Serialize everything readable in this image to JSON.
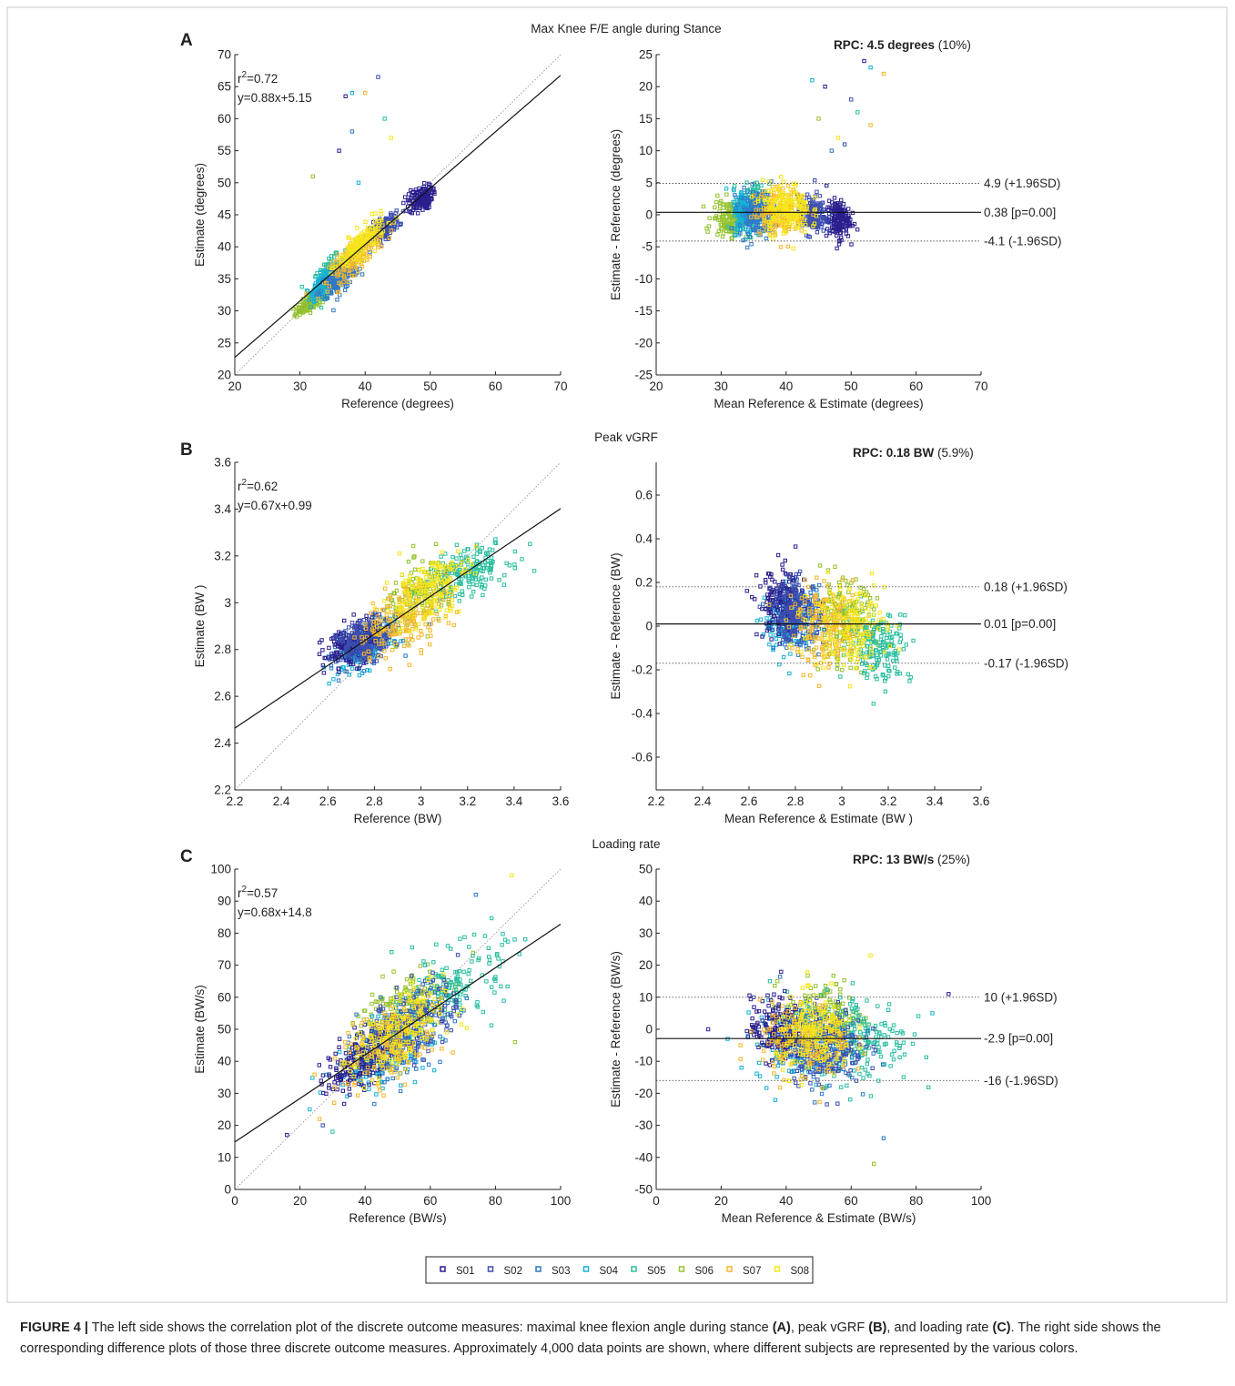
{
  "figure": {
    "caption": {
      "label": "FIGURE 4 |",
      "parts": [
        {
          "t": " The left side shows the correlation plot of the discrete outcome measures: maximal knee flexion angle during stance ",
          "b": false
        },
        {
          "t": "(A)",
          "b": true
        },
        {
          "t": ", peak vGRF ",
          "b": false
        },
        {
          "t": "(B)",
          "b": true
        },
        {
          "t": ", and loading rate ",
          "b": false
        },
        {
          "t": "(C)",
          "b": true
        },
        {
          "t": ". The right side shows the corresponding difference plots of those three discrete outcome measures. Approximately 4,000 data points are shown, where different subjects are represented by the various colors.",
          "b": false
        }
      ]
    },
    "legend": {
      "entries": [
        "S01",
        "S02",
        "S03",
        "S04",
        "S05",
        "S06",
        "S07",
        "S08"
      ],
      "colors": [
        "#2a1f8f",
        "#3d4fb0",
        "#2f78c8",
        "#16b1d6",
        "#2bbfa0",
        "#95c22e",
        "#f6b72b",
        "#f6e51a"
      ]
    }
  },
  "chart_data": [
    {
      "id": "A-left",
      "panel_letter": "A",
      "panel_title": "Max Knee F/E angle during Stance",
      "type": "scatter",
      "xlabel": "Reference (degrees)",
      "ylabel": "Estimate (degrees)",
      "xlim": [
        20,
        70
      ],
      "ylim": [
        20,
        70
      ],
      "xticks": [
        20,
        30,
        40,
        50,
        60,
        70
      ],
      "yticks": [
        20,
        25,
        30,
        35,
        40,
        45,
        50,
        55,
        60,
        65,
        70
      ],
      "annotation_r2": "r²=0.72",
      "annotation_eq": "y=0.88x+5.15",
      "fit_line": {
        "slope": 0.88,
        "intercept": 5.15
      },
      "identity_line": true,
      "series_clusters": [
        {
          "name": "S01",
          "cx": 48.5,
          "cy": 47.5,
          "sx": 0.9,
          "sy": 1.0,
          "rho": 0.3
        },
        {
          "name": "S02",
          "cx": 43.0,
          "cy": 43.0,
          "sx": 1.1,
          "sy": 1.0,
          "rho": 0.6
        },
        {
          "name": "S03",
          "cx": 36.0,
          "cy": 35.0,
          "sx": 1.5,
          "sy": 1.5,
          "rho": 0.7
        },
        {
          "name": "S04",
          "cx": 33.5,
          "cy": 34.0,
          "sx": 0.8,
          "sy": 1.0,
          "rho": 0.6
        },
        {
          "name": "S05",
          "cx": 34.5,
          "cy": 35.5,
          "sx": 1.2,
          "sy": 1.5,
          "rho": 0.6
        },
        {
          "name": "S06",
          "cx": 32.0,
          "cy": 31.5,
          "sx": 1.3,
          "sy": 1.0,
          "rho": 0.8
        },
        {
          "name": "S07",
          "cx": 38.5,
          "cy": 38.5,
          "sx": 2.0,
          "sy": 2.0,
          "rho": 0.8
        },
        {
          "name": "S08",
          "cx": 39.5,
          "cy": 40.5,
          "sx": 1.8,
          "sy": 1.9,
          "rho": 0.8
        }
      ],
      "outliers": [
        [
          37,
          63.5
        ],
        [
          38,
          64
        ],
        [
          40,
          64
        ],
        [
          42,
          66.5
        ],
        [
          43,
          60
        ],
        [
          44,
          57
        ],
        [
          38,
          58
        ],
        [
          32,
          51
        ],
        [
          36,
          55
        ],
        [
          39,
          50
        ]
      ]
    },
    {
      "id": "A-right",
      "type": "scatter",
      "xlabel": "Mean Reference & Estimate (degrees)",
      "ylabel": "Estimate - Reference (degrees)",
      "xlim": [
        20,
        70
      ],
      "ylim": [
        -25,
        25
      ],
      "xticks": [
        20,
        30,
        40,
        50,
        60,
        70
      ],
      "yticks": [
        -25,
        -20,
        -15,
        -10,
        -5,
        0,
        5,
        10,
        15,
        20,
        25
      ],
      "rpc_bold": "RPC: 4.5 degrees",
      "rpc_pct": "(10%)",
      "mean_line": {
        "value": 0.38,
        "label": "0.38 [p=0.00]"
      },
      "upper_loa": {
        "value": 4.9,
        "label": "4.9 (+1.96SD)"
      },
      "lower_loa": {
        "value": -4.1,
        "label": "-4.1 (-1.96SD)"
      },
      "series_clusters": [
        {
          "name": "S01",
          "cx": 48.0,
          "cy": -0.8,
          "sx": 0.9,
          "sy": 1.5,
          "rho": 0
        },
        {
          "name": "S02",
          "cx": 44.0,
          "cy": 0.0,
          "sx": 1.1,
          "sy": 1.5,
          "rho": 0
        },
        {
          "name": "S03",
          "cx": 35.5,
          "cy": 0.3,
          "sx": 1.4,
          "sy": 1.8,
          "rho": 0
        },
        {
          "name": "S04",
          "cx": 33.5,
          "cy": 0.5,
          "sx": 0.8,
          "sy": 1.7,
          "rho": 0
        },
        {
          "name": "S05",
          "cx": 35.0,
          "cy": 1.0,
          "sx": 1.2,
          "sy": 1.9,
          "rho": 0
        },
        {
          "name": "S06",
          "cx": 31.5,
          "cy": -0.5,
          "sx": 1.4,
          "sy": 1.4,
          "rho": 0
        },
        {
          "name": "S07",
          "cx": 39.0,
          "cy": 0.5,
          "sx": 2.0,
          "sy": 1.8,
          "rho": 0
        },
        {
          "name": "S08",
          "cx": 40.0,
          "cy": 1.0,
          "sx": 1.8,
          "sy": 2.0,
          "rho": 0
        }
      ],
      "outliers": [
        [
          52,
          24
        ],
        [
          53,
          23
        ],
        [
          55,
          22
        ],
        [
          50,
          18
        ],
        [
          51,
          16
        ],
        [
          48,
          12
        ],
        [
          47,
          10
        ],
        [
          45,
          15
        ],
        [
          46,
          20
        ],
        [
          44,
          21
        ],
        [
          53,
          14
        ],
        [
          49,
          11
        ]
      ]
    },
    {
      "id": "B-left",
      "panel_letter": "B",
      "panel_title": "Peak vGRF",
      "type": "scatter",
      "xlabel": "Reference (BW)",
      "ylabel": "Estimate (BW )",
      "xlim": [
        2.2,
        3.6
      ],
      "ylim": [
        2.2,
        3.6
      ],
      "xticks": [
        "2.2",
        "2.4",
        "2.6",
        "2.8",
        "3",
        "3.2",
        "3.4",
        "3.6"
      ],
      "yticks": [
        "2.2",
        "2.4",
        "2.6",
        "2.8",
        "3",
        "3.2",
        "3.4",
        "3.6"
      ],
      "annotation_r2": "r²=0.62",
      "annotation_eq": "y=0.67x+0.99",
      "fit_line": {
        "slope": 0.67,
        "intercept": 0.99
      },
      "identity_line": true,
      "series_clusters": [
        {
          "name": "S01",
          "cx": 2.7,
          "cy": 2.82,
          "sx": 0.06,
          "sy": 0.05,
          "rho": 0.4
        },
        {
          "name": "S02",
          "cx": 2.76,
          "cy": 2.84,
          "sx": 0.06,
          "sy": 0.05,
          "rho": 0.4
        },
        {
          "name": "S03",
          "cx": 2.78,
          "cy": 2.84,
          "sx": 0.06,
          "sy": 0.05,
          "rho": 0.5
        },
        {
          "name": "S04",
          "cx": 2.75,
          "cy": 2.8,
          "sx": 0.06,
          "sy": 0.05,
          "rho": 0.5
        },
        {
          "name": "S05",
          "cx": 3.2,
          "cy": 3.13,
          "sx": 0.09,
          "sy": 0.06,
          "rho": 0.5
        },
        {
          "name": "S06",
          "cx": 3.0,
          "cy": 3.03,
          "sx": 0.08,
          "sy": 0.08,
          "rho": 0.5
        },
        {
          "name": "S07",
          "cx": 2.93,
          "cy": 2.93,
          "sx": 0.1,
          "sy": 0.08,
          "rho": 0.5
        },
        {
          "name": "S08",
          "cx": 3.02,
          "cy": 3.05,
          "sx": 0.09,
          "sy": 0.08,
          "rho": 0.5
        }
      ],
      "outliers": []
    },
    {
      "id": "B-right",
      "type": "scatter",
      "xlabel": "Mean Reference & Estimate (BW )",
      "ylabel": "Estimate - Reference (BW)",
      "xlim": [
        2.2,
        3.6
      ],
      "ylim": [
        -0.75,
        0.75
      ],
      "xticks": [
        "2.2",
        "2.4",
        "2.6",
        "2.8",
        "3",
        "3.2",
        "3.4",
        "3.6"
      ],
      "yticks": [
        "-0.6",
        "-0.4",
        "-0.2",
        "0",
        "0.2",
        "0.4",
        "0.6"
      ],
      "ytick_values": [
        -0.6,
        -0.4,
        -0.2,
        0,
        0.2,
        0.4,
        0.6
      ],
      "rpc_bold": "RPC: 0.18 BW",
      "rpc_pct": "(5.9%)",
      "mean_line": {
        "value": 0.01,
        "label": "0.01 [p=0.00]"
      },
      "upper_loa": {
        "value": 0.18,
        "label": "0.18 (+1.96SD)"
      },
      "lower_loa": {
        "value": -0.17,
        "label": "-0.17 (-1.96SD)"
      },
      "series_clusters": [
        {
          "name": "S01",
          "cx": 2.74,
          "cy": 0.1,
          "sx": 0.05,
          "sy": 0.08,
          "rho": 0
        },
        {
          "name": "S02",
          "cx": 2.8,
          "cy": 0.07,
          "sx": 0.05,
          "sy": 0.07,
          "rho": 0
        },
        {
          "name": "S03",
          "cx": 2.81,
          "cy": 0.04,
          "sx": 0.05,
          "sy": 0.07,
          "rho": 0
        },
        {
          "name": "S04",
          "cx": 2.77,
          "cy": 0.02,
          "sx": 0.05,
          "sy": 0.07,
          "rho": 0
        },
        {
          "name": "S05",
          "cx": 3.16,
          "cy": -0.09,
          "sx": 0.07,
          "sy": 0.08,
          "rho": 0
        },
        {
          "name": "S06",
          "cx": 3.01,
          "cy": 0.02,
          "sx": 0.07,
          "sy": 0.09,
          "rho": 0
        },
        {
          "name": "S07",
          "cx": 2.93,
          "cy": -0.01,
          "sx": 0.08,
          "sy": 0.09,
          "rho": 0
        },
        {
          "name": "S08",
          "cx": 3.03,
          "cy": 0.01,
          "sx": 0.08,
          "sy": 0.1,
          "rho": 0
        }
      ],
      "outliers": []
    },
    {
      "id": "C-left",
      "panel_letter": "C",
      "panel_title": "Loading rate",
      "type": "scatter",
      "xlabel": "Reference (BW/s)",
      "ylabel": "Estimate (BW/s)",
      "xlim": [
        0,
        100
      ],
      "ylim": [
        0,
        100
      ],
      "xticks": [
        0,
        20,
        40,
        60,
        80,
        100
      ],
      "yticks": [
        0,
        10,
        20,
        30,
        40,
        50,
        60,
        70,
        80,
        90,
        100
      ],
      "annotation_r2": "r²=0.57",
      "annotation_eq": "y=0.68x+14.8",
      "fit_line": {
        "slope": 0.68,
        "intercept": 14.8
      },
      "identity_line": true,
      "series_clusters": [
        {
          "name": "S01",
          "cx": 38,
          "cy": 40,
          "sx": 5,
          "sy": 5,
          "rho": 0.5
        },
        {
          "name": "S02",
          "cx": 55,
          "cy": 52,
          "sx": 7,
          "sy": 7,
          "rho": 0.5
        },
        {
          "name": "S03",
          "cx": 52,
          "cy": 48,
          "sx": 7,
          "sy": 7,
          "rho": 0.5
        },
        {
          "name": "S04",
          "cx": 45,
          "cy": 42,
          "sx": 7,
          "sy": 6,
          "rho": 0.5
        },
        {
          "name": "S05",
          "cx": 67,
          "cy": 63,
          "sx": 8,
          "sy": 7,
          "rho": 0.5
        },
        {
          "name": "S06",
          "cx": 50,
          "cy": 55,
          "sx": 7,
          "sy": 7,
          "rho": 0.5
        },
        {
          "name": "S07",
          "cx": 48,
          "cy": 45,
          "sx": 8,
          "sy": 7,
          "rho": 0.5
        },
        {
          "name": "S08",
          "cx": 50,
          "cy": 48,
          "sx": 7,
          "sy": 7,
          "rho": 0.5
        }
      ],
      "outliers": [
        [
          16,
          17
        ],
        [
          23,
          25
        ],
        [
          26,
          22
        ],
        [
          27,
          20
        ],
        [
          30,
          18
        ],
        [
          85,
          98
        ],
        [
          74,
          92
        ],
        [
          86,
          46
        ]
      ]
    },
    {
      "id": "C-right",
      "type": "scatter",
      "xlabel": "Mean Reference & Estimate (BW/s)",
      "ylabel": "Estimate - Reference (BW/s)",
      "xlim": [
        0,
        100
      ],
      "ylim": [
        -50,
        50
      ],
      "xticks": [
        0,
        20,
        40,
        60,
        80,
        100
      ],
      "yticks": [
        -50,
        -40,
        -30,
        -20,
        -10,
        0,
        10,
        20,
        30,
        40,
        50
      ],
      "rpc_bold": "RPC: 13 BW/s",
      "rpc_pct": "(25%)",
      "mean_line": {
        "value": -2.9,
        "label": "-2.9 [p=0.00]"
      },
      "upper_loa": {
        "value": 10,
        "label": "10 (+1.96SD)"
      },
      "lower_loa": {
        "value": -16,
        "label": "-16 (-1.96SD)"
      },
      "series_clusters": [
        {
          "name": "S01",
          "cx": 37,
          "cy": 0,
          "sx": 4,
          "sy": 5,
          "rho": 0
        },
        {
          "name": "S02",
          "cx": 52,
          "cy": -5,
          "sx": 6,
          "sy": 6,
          "rho": 0
        },
        {
          "name": "S03",
          "cx": 50,
          "cy": -5,
          "sx": 6,
          "sy": 6,
          "rho": 0
        },
        {
          "name": "S04",
          "cx": 43,
          "cy": -4,
          "sx": 6,
          "sy": 6,
          "rho": 0
        },
        {
          "name": "S05",
          "cx": 64,
          "cy": -3,
          "sx": 7,
          "sy": 7,
          "rho": 0
        },
        {
          "name": "S06",
          "cx": 52,
          "cy": 4,
          "sx": 6,
          "sy": 6,
          "rho": 0
        },
        {
          "name": "S07",
          "cx": 46,
          "cy": -4,
          "sx": 7,
          "sy": 6,
          "rho": 0
        },
        {
          "name": "S08",
          "cx": 49,
          "cy": -2,
          "sx": 6,
          "sy": 6,
          "rho": 0
        }
      ],
      "outliers": [
        [
          16,
          0
        ],
        [
          22,
          -3
        ],
        [
          26,
          -5
        ],
        [
          30,
          10
        ],
        [
          35,
          15
        ],
        [
          66,
          23
        ],
        [
          70,
          -34
        ],
        [
          67,
          -42
        ],
        [
          90,
          11
        ],
        [
          85,
          5
        ]
      ]
    }
  ]
}
